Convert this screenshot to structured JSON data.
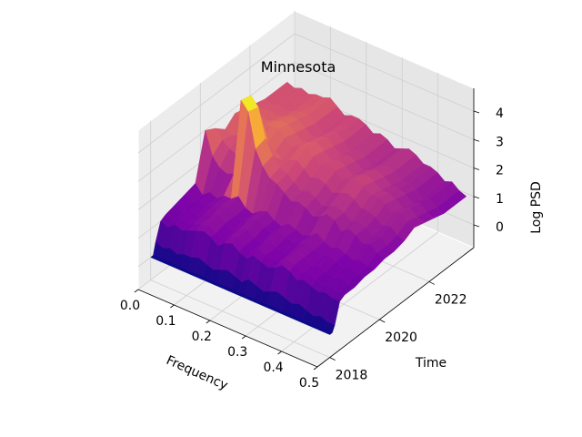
{
  "chart_data": {
    "type": "surface3d",
    "title": "Minnesota",
    "xlabel": "Frequency",
    "ylabel": "Time",
    "zlabel": "Log PSD",
    "xlim": [
      0,
      0.5
    ],
    "ylim": [
      2017.5,
      2023.8
    ],
    "zlim": [
      -0.8,
      4.8
    ],
    "x_ticks": [
      0.0,
      0.1,
      0.2,
      0.3,
      0.4,
      0.5
    ],
    "x_tick_labels": [
      "0.0",
      "0.1",
      "0.2",
      "0.3",
      "0.4",
      "0.5"
    ],
    "y_ticks": [
      2018,
      2020,
      2022
    ],
    "y_tick_labels": [
      "2018",
      "2020",
      "2022"
    ],
    "z_ticks": [
      0,
      1,
      2,
      3,
      4
    ],
    "z_tick_labels": [
      "0",
      "1",
      "2",
      "3",
      "4"
    ],
    "colormap": "plasma",
    "surface": {
      "freq": [
        0.0,
        0.02,
        0.04,
        0.06,
        0.08,
        0.1,
        0.12,
        0.14,
        0.16,
        0.18,
        0.2,
        0.22,
        0.24,
        0.26,
        0.28,
        0.3,
        0.32,
        0.34,
        0.36,
        0.38,
        0.4,
        0.42,
        0.44,
        0.46,
        0.48,
        0.5
      ],
      "time": [
        2018.0,
        2018.1,
        2018.2,
        2018.4,
        2018.6,
        2019.0,
        2019.4,
        2019.8,
        2020.2,
        2020.6,
        2021.0,
        2021.4,
        2021.8,
        2022.2,
        2022.6,
        2023.0,
        2023.5
      ],
      "log_psd": [
        [
          0.0,
          0.0,
          0.0,
          0.0,
          0.0,
          0.0,
          0.0,
          0.0,
          0.0,
          0.0,
          0.0,
          0.0,
          0.0,
          0.0,
          0.0,
          0.0,
          0.0,
          0.0,
          0.0,
          0.0,
          0.0,
          0.0,
          0.0,
          0.0,
          0.0,
          0.0
        ],
        [
          0.0,
          0.0,
          0.0,
          0.0,
          0.0,
          0.0,
          0.0,
          0.0,
          0.0,
          0.0,
          0.0,
          0.0,
          0.0,
          0.0,
          0.0,
          0.0,
          0.0,
          0.0,
          0.0,
          0.0,
          0.0,
          0.0,
          0.0,
          0.0,
          0.0,
          0.0
        ],
        [
          0.4,
          0.3,
          0.4,
          0.3,
          0.4,
          0.4,
          0.5,
          0.4,
          0.3,
          0.4,
          0.5,
          0.4,
          0.3,
          0.5,
          0.4,
          0.3,
          0.4,
          0.5,
          0.4,
          0.3,
          0.4,
          0.3,
          0.2,
          0.3,
          0.2,
          0.2
        ],
        [
          1.0,
          0.9,
          1.1,
          1.0,
          1.1,
          1.2,
          1.3,
          1.2,
          1.0,
          1.2,
          1.3,
          1.1,
          1.0,
          1.2,
          1.1,
          1.0,
          1.1,
          1.3,
          1.2,
          1.0,
          1.1,
          1.0,
          0.9,
          1.0,
          0.9,
          0.9
        ],
        [
          1.1,
          1.0,
          1.2,
          1.1,
          1.2,
          1.3,
          1.4,
          1.2,
          1.1,
          1.3,
          1.4,
          1.2,
          1.1,
          1.3,
          1.2,
          1.1,
          1.2,
          1.4,
          1.3,
          1.1,
          1.2,
          1.1,
          1.0,
          1.1,
          1.0,
          1.0
        ],
        [
          1.2,
          1.0,
          1.2,
          1.1,
          1.3,
          1.3,
          1.5,
          1.3,
          1.1,
          1.3,
          1.4,
          1.2,
          1.1,
          1.4,
          1.2,
          1.1,
          1.2,
          1.4,
          1.3,
          1.1,
          1.2,
          1.1,
          1.0,
          1.1,
          1.0,
          1.0
        ],
        [
          1.3,
          1.1,
          1.2,
          1.2,
          1.3,
          1.4,
          1.5,
          1.3,
          1.2,
          1.4,
          1.5,
          1.3,
          1.2,
          1.4,
          1.3,
          1.2,
          1.3,
          1.4,
          1.3,
          1.2,
          1.3,
          1.2,
          1.1,
          1.2,
          1.1,
          1.1
        ],
        [
          1.4,
          1.1,
          1.3,
          1.2,
          1.4,
          1.4,
          1.6,
          1.3,
          1.2,
          1.4,
          1.5,
          1.3,
          1.2,
          1.4,
          1.3,
          1.2,
          1.3,
          1.5,
          1.3,
          1.2,
          1.3,
          1.2,
          1.1,
          1.2,
          1.1,
          1.1
        ],
        [
          3.0,
          2.2,
          1.9,
          1.8,
          1.9,
          4.6,
          4.3,
          3.1,
          2.6,
          2.3,
          2.2,
          2.0,
          1.8,
          1.9,
          1.8,
          1.6,
          1.7,
          1.9,
          1.8,
          1.5,
          1.7,
          1.6,
          1.4,
          1.5,
          1.3,
          1.2
        ],
        [
          2.8,
          2.5,
          2.3,
          2.2,
          2.3,
          4.5,
          4.2,
          3.2,
          2.7,
          2.4,
          2.3,
          2.1,
          1.9,
          2.0,
          1.9,
          1.7,
          1.8,
          1.9,
          1.8,
          1.6,
          1.7,
          1.6,
          1.4,
          1.5,
          1.3,
          1.2
        ],
        [
          2.5,
          2.4,
          2.5,
          2.4,
          2.5,
          2.6,
          2.7,
          2.5,
          2.3,
          2.4,
          2.5,
          2.3,
          2.1,
          2.2,
          2.1,
          1.9,
          2.0,
          2.1,
          2.0,
          1.8,
          1.8,
          1.7,
          1.5,
          1.6,
          1.4,
          1.3
        ],
        [
          2.8,
          2.7,
          2.8,
          2.7,
          2.8,
          2.9,
          2.9,
          2.7,
          2.5,
          2.6,
          2.7,
          2.5,
          2.3,
          2.4,
          2.3,
          2.1,
          2.2,
          2.3,
          2.2,
          2.0,
          2.0,
          1.9,
          1.7,
          1.8,
          1.6,
          1.5
        ],
        [
          2.7,
          2.6,
          2.7,
          2.6,
          2.7,
          2.8,
          2.8,
          2.6,
          2.4,
          2.5,
          2.6,
          2.4,
          2.2,
          2.3,
          2.2,
          2.0,
          2.1,
          2.2,
          2.1,
          1.9,
          1.9,
          1.8,
          1.6,
          1.7,
          1.5,
          1.4
        ],
        [
          2.6,
          2.5,
          2.6,
          2.5,
          2.6,
          2.7,
          2.7,
          2.5,
          2.3,
          2.4,
          2.5,
          2.3,
          2.1,
          2.2,
          2.1,
          1.9,
          2.0,
          2.1,
          2.0,
          1.8,
          1.8,
          1.7,
          1.5,
          1.6,
          1.4,
          1.3
        ],
        [
          2.5,
          2.4,
          2.5,
          2.4,
          2.5,
          2.6,
          2.6,
          2.4,
          2.2,
          2.3,
          2.4,
          2.2,
          2.0,
          2.1,
          2.0,
          1.8,
          1.9,
          2.0,
          1.9,
          1.7,
          1.7,
          1.6,
          1.4,
          1.5,
          1.3,
          1.2
        ],
        [
          2.5,
          2.4,
          2.5,
          2.4,
          2.5,
          2.5,
          2.6,
          2.4,
          2.2,
          2.3,
          2.3,
          2.2,
          2.0,
          2.1,
          2.0,
          1.8,
          1.9,
          2.0,
          1.9,
          1.7,
          1.7,
          1.6,
          1.4,
          1.5,
          1.3,
          1.2
        ],
        [
          2.5,
          2.4,
          2.5,
          2.4,
          2.5,
          2.5,
          2.6,
          2.4,
          2.2,
          2.3,
          2.3,
          2.2,
          2.0,
          2.1,
          2.0,
          1.8,
          1.9,
          2.0,
          1.9,
          1.7,
          1.7,
          1.6,
          1.4,
          1.5,
          1.3,
          1.2
        ]
      ]
    }
  }
}
